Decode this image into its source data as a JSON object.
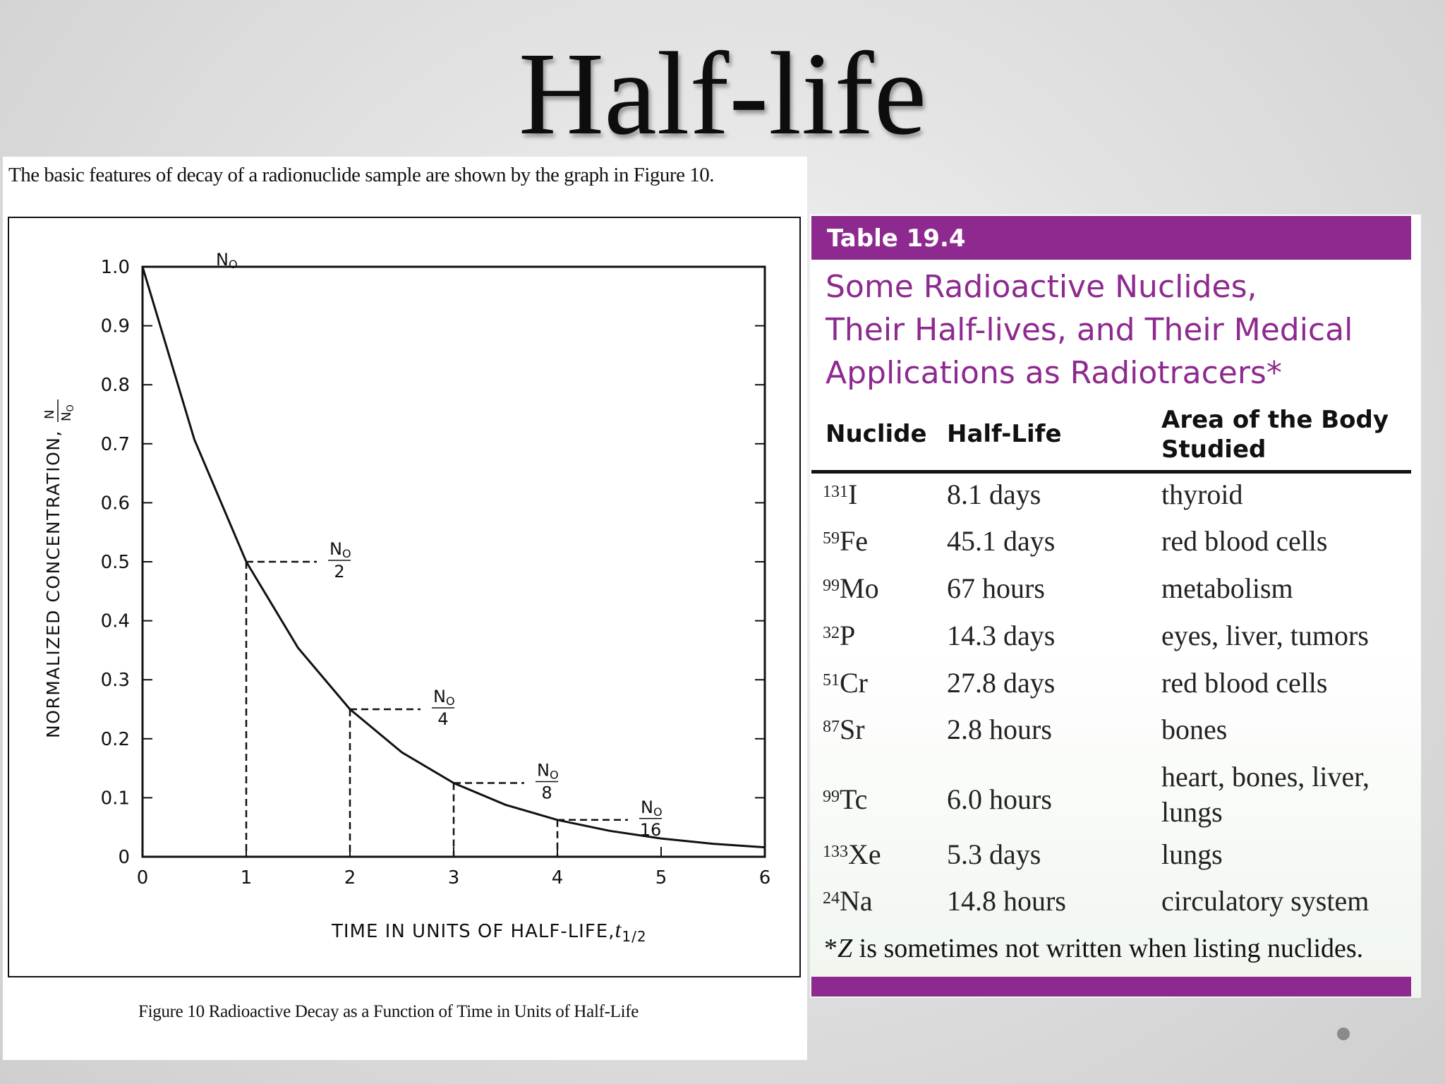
{
  "slide": {
    "title": "Half-life"
  },
  "figure": {
    "intro": "The basic features of decay of a radionuclide sample are shown by the graph in Figure 10.",
    "caption": "Figure 10    Radioactive Decay as a Function of Time in Units of Half-Life"
  },
  "chart_data": {
    "type": "line",
    "xlabel": "TIME  IN  UNITS  OF  HALF-LIFE,",
    "xlabel_symbol": "t",
    "xlabel_subscript": "1/2",
    "ylabel": "NORMALIZED  CONCENTRATION,",
    "ylabel_symbol_num": "N",
    "ylabel_symbol_den": "N",
    "ylabel_symbol_den_sub": "O",
    "x_ticks": [
      "0",
      "1",
      "2",
      "3",
      "4",
      "5",
      "6"
    ],
    "y_ticks": [
      "0",
      "0.1",
      "0.2",
      "0.3",
      "0.4",
      "0.5",
      "0.6",
      "0.7",
      "0.8",
      "0.9",
      "1.0"
    ],
    "xlim": [
      0,
      6
    ],
    "ylim": [
      0,
      1.0
    ],
    "grid": false,
    "series": [
      {
        "x": [
          0,
          0.5,
          1,
          1.5,
          2,
          2.5,
          3,
          3.5,
          4,
          4.5,
          5,
          5.5,
          6
        ],
        "y": [
          1.0,
          0.707,
          0.5,
          0.354,
          0.25,
          0.177,
          0.125,
          0.088,
          0.0625,
          0.044,
          0.031,
          0.022,
          0.016
        ]
      }
    ],
    "annotations": [
      {
        "x": 0,
        "y": 1.0,
        "num": "N",
        "den": "",
        "sub": "O"
      },
      {
        "x": 1,
        "y": 0.5,
        "num": "N",
        "den": "2",
        "sub": "O"
      },
      {
        "x": 2,
        "y": 0.25,
        "num": "N",
        "den": "4",
        "sub": "O"
      },
      {
        "x": 3,
        "y": 0.125,
        "num": "N",
        "den": "8",
        "sub": "O"
      },
      {
        "x": 4,
        "y": 0.0625,
        "num": "N",
        "den": "16",
        "sub": "O"
      }
    ]
  },
  "table": {
    "label": "Table 19.4",
    "title_lines": [
      "Some Radioactive Nuclides,",
      "Their Half-lives, and Their Medical",
      "Applications as Radiotracers*"
    ],
    "headers": {
      "nuclide": "Nuclide",
      "half_life": "Half-Life",
      "area_line1": "Area of the Body",
      "area_line2": "Studied"
    },
    "rows": [
      {
        "mass": "131",
        "symbol": "I",
        "half_life": "8.1 days",
        "area": "thyroid"
      },
      {
        "mass": "59",
        "symbol": "Fe",
        "half_life": "45.1 days",
        "area": "red blood cells"
      },
      {
        "mass": "99",
        "symbol": "Mo",
        "half_life": "67 hours",
        "area": "metabolism"
      },
      {
        "mass": "32",
        "symbol": "P",
        "half_life": "14.3 days",
        "area": "eyes, liver, tumors"
      },
      {
        "mass": "51",
        "symbol": "Cr",
        "half_life": "27.8 days",
        "area": "red blood cells"
      },
      {
        "mass": "87",
        "symbol": "Sr",
        "half_life": "2.8 hours",
        "area": "bones"
      },
      {
        "mass": "99",
        "symbol": "Tc",
        "half_life": "6.0 hours",
        "area": "heart, bones, liver,",
        "area2": "lungs"
      },
      {
        "mass": "133",
        "symbol": "Xe",
        "half_life": "5.3 days",
        "area": "lungs"
      },
      {
        "mass": "24",
        "symbol": "Na",
        "half_life": "14.8 hours",
        "area": "circulatory system"
      }
    ],
    "footnote": "*Z is sometimes not written when listing nuclides."
  },
  "colors": {
    "accent": "#8e2a8f",
    "background": "#d8d8d8"
  }
}
